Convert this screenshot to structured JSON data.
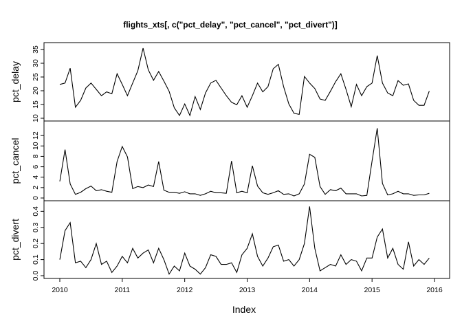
{
  "chart_data": {
    "type": "line",
    "title": "flights_xts[, c(\"pct_delay\", \"pct_cancel\", \"pct_divert\")]",
    "xlabel": "Index",
    "xlim": [
      2010,
      2016
    ],
    "x_ticks": [
      "2010",
      "2011",
      "2012",
      "2013",
      "2014",
      "2015",
      "2016"
    ],
    "x": [
      2010.0,
      2010.0833,
      2010.1667,
      2010.25,
      2010.3333,
      2010.4167,
      2010.5,
      2010.5833,
      2010.6667,
      2010.75,
      2010.8333,
      2010.9167,
      2011.0,
      2011.0833,
      2011.1667,
      2011.25,
      2011.3333,
      2011.4167,
      2011.5,
      2011.5833,
      2011.6667,
      2011.75,
      2011.8333,
      2011.9167,
      2012.0,
      2012.0833,
      2012.1667,
      2012.25,
      2012.3333,
      2012.4167,
      2012.5,
      2012.5833,
      2012.6667,
      2012.75,
      2012.8333,
      2012.9167,
      2013.0,
      2013.0833,
      2013.1667,
      2013.25,
      2013.3333,
      2013.4167,
      2013.5,
      2013.5833,
      2013.6667,
      2013.75,
      2013.8333,
      2013.9167,
      2014.0,
      2014.0833,
      2014.1667,
      2014.25,
      2014.3333,
      2014.4167,
      2014.5,
      2014.5833,
      2014.6667,
      2014.75,
      2014.8333,
      2014.9167,
      2015.0,
      2015.0833,
      2015.1667,
      2015.25,
      2015.3333,
      2015.4167,
      2015.5,
      2015.5833,
      2015.6667,
      2015.75,
      2015.8333,
      2015.9167
    ],
    "panels": [
      {
        "name": "pct_delay",
        "ylim": [
          10,
          36
        ],
        "y_ticks": [
          "10",
          "15",
          "20",
          "25",
          "30",
          "35"
        ],
        "values": [
          22.3,
          22.8,
          28.2,
          14.0,
          16.5,
          21.0,
          22.8,
          20.5,
          18.2,
          19.6,
          18.9,
          26.2,
          22.3,
          18.2,
          22.8,
          27.3,
          35.5,
          27.6,
          23.8,
          27.0,
          23.5,
          19.8,
          13.8,
          11.0,
          15.2,
          11.0,
          17.9,
          13.2,
          19.2,
          22.8,
          23.8,
          21.0,
          18.2,
          15.8,
          14.9,
          18.2,
          14.0,
          18.2,
          22.8,
          19.6,
          21.5,
          28.0,
          29.6,
          21.5,
          15.2,
          11.8,
          11.4,
          25.2,
          22.8,
          20.8,
          17.0,
          16.5,
          19.8,
          23.3,
          26.2,
          20.5,
          14.2,
          22.3,
          18.2,
          21.5,
          22.8,
          32.8,
          22.8,
          19.2,
          18.2,
          23.7,
          22.0,
          22.5,
          16.5,
          14.7,
          14.7,
          19.9
        ]
      },
      {
        "name": "pct_cancel",
        "ylim": [
          0,
          14
        ],
        "y_ticks": [
          "0",
          "2",
          "4",
          "6",
          "8",
          "10",
          "12"
        ],
        "values": [
          3.2,
          9.3,
          2.7,
          0.7,
          1.1,
          1.8,
          2.3,
          1.4,
          1.6,
          1.3,
          1.1,
          7.0,
          9.9,
          7.9,
          1.8,
          2.2,
          2.0,
          2.5,
          2.2,
          7.0,
          1.5,
          1.1,
          1.1,
          0.9,
          1.2,
          0.8,
          0.8,
          0.5,
          0.8,
          1.3,
          1.0,
          1.0,
          0.9,
          7.1,
          1.0,
          1.3,
          1.0,
          6.2,
          2.3,
          1.0,
          0.7,
          1.0,
          1.4,
          0.7,
          0.8,
          0.4,
          0.8,
          2.7,
          8.4,
          7.8,
          2.2,
          0.7,
          1.6,
          1.4,
          1.9,
          0.8,
          0.8,
          0.8,
          0.4,
          0.5,
          7.1,
          13.4,
          2.8,
          0.6,
          0.8,
          1.3,
          0.8,
          0.8,
          0.5,
          0.6,
          0.6,
          0.9
        ]
      },
      {
        "name": "pct_divert",
        "ylim": [
          0.0,
          0.44
        ],
        "y_ticks": [
          "0.0",
          "0.1",
          "0.2",
          "0.3",
          "0.4"
        ],
        "values": [
          0.1,
          0.28,
          0.33,
          0.08,
          0.09,
          0.05,
          0.1,
          0.2,
          0.07,
          0.09,
          0.02,
          0.06,
          0.12,
          0.08,
          0.17,
          0.11,
          0.14,
          0.16,
          0.08,
          0.17,
          0.1,
          0.01,
          0.06,
          0.03,
          0.14,
          0.06,
          0.04,
          0.01,
          0.05,
          0.13,
          0.12,
          0.07,
          0.07,
          0.08,
          0.02,
          0.13,
          0.17,
          0.26,
          0.12,
          0.06,
          0.11,
          0.18,
          0.19,
          0.09,
          0.1,
          0.06,
          0.1,
          0.2,
          0.43,
          0.17,
          0.03,
          0.05,
          0.07,
          0.06,
          0.13,
          0.07,
          0.1,
          0.09,
          0.03,
          0.11,
          0.11,
          0.24,
          0.29,
          0.11,
          0.17,
          0.07,
          0.04,
          0.21,
          0.06,
          0.1,
          0.07,
          0.11
        ]
      }
    ]
  }
}
